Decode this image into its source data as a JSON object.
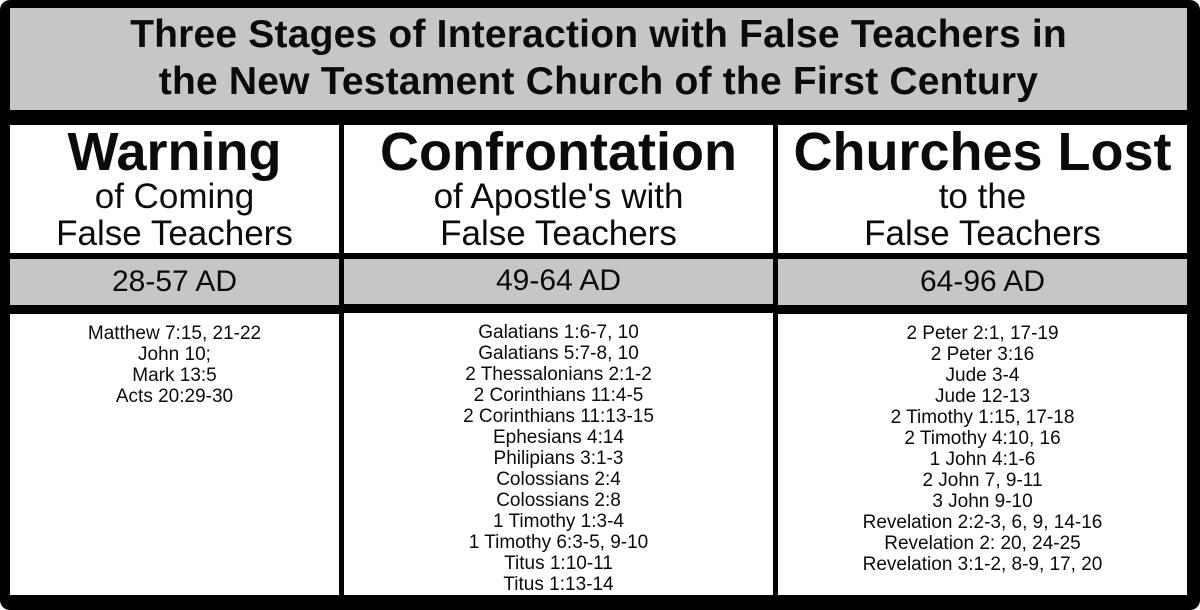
{
  "page": {
    "title_line1": "Three Stages of Interaction with False Teachers in",
    "title_line2": "the New Testament Church of the First Century"
  },
  "colors": {
    "band_gray": "#c6c6c6",
    "border_black": "#000000",
    "cell_white": "#ffffff"
  },
  "columns": [
    {
      "id": "warning",
      "heading": "Warning",
      "subtitle_lines": [
        "of Coming",
        "False Teachers"
      ],
      "date_range": "28-57 AD",
      "references": [
        "Matthew 7:15, 21-22",
        "John 10;",
        "Mark 13:5",
        "Acts 20:29-30"
      ]
    },
    {
      "id": "confrontation",
      "heading": "Confrontation",
      "subtitle_lines": [
        "of Apostle's with",
        "False Teachers"
      ],
      "date_range": "49-64 AD",
      "references": [
        "Galatians 1:6-7, 10",
        "Galatians 5:7-8, 10",
        "2 Thessalonians 2:1-2",
        "2 Corinthians 11:4-5",
        "2 Corinthians 11:13-15",
        "Ephesians 4:14",
        "Philipians 3:1-3",
        "Colossians 2:4",
        "Colossians 2:8",
        "1 Timothy 1:3-4",
        "1 Timothy 6:3-5, 9-10",
        "Titus 1:10-11",
        "Titus 1:13-14"
      ]
    },
    {
      "id": "churches-lost",
      "heading": "Churches Lost",
      "subtitle_lines": [
        "to the",
        "False Teachers"
      ],
      "date_range": "64-96 AD",
      "references": [
        "2 Peter 2:1, 17-19",
        "2 Peter 3:16",
        "Jude 3-4",
        "Jude 12-13",
        "2 Timothy 1:15, 17-18",
        "2 Timothy 4:10, 16",
        "1 John 4:1-6",
        "2 John 7, 9-11",
        "3 John 9-10",
        "Revelation 2:2-3, 6, 9, 14-16",
        "Revelation 2: 20, 24-25",
        "Revelation 3:1-2, 8-9, 17, 20"
      ]
    }
  ]
}
